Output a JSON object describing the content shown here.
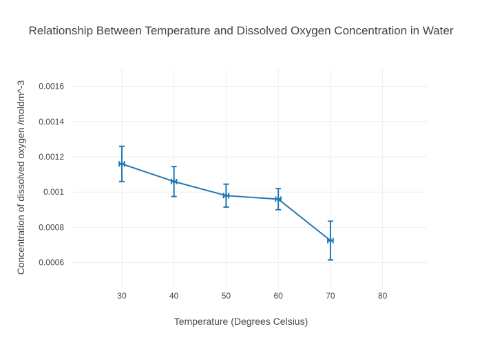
{
  "chart_data": {
    "type": "line",
    "title": "Relationship Between Temperature and Dissolved Oxygen Concentration in Water",
    "xlabel": "Temperature (Degrees Celsius)",
    "ylabel": "Concentration of dissolved oxygen /moldm^-3",
    "xlim": [
      20.5,
      88.5
    ],
    "ylim": [
      0.00045,
      0.0017
    ],
    "x_ticks": [
      30,
      40,
      50,
      60,
      70,
      80
    ],
    "x_tick_labels": [
      "30",
      "40",
      "50",
      "60",
      "70",
      "80"
    ],
    "y_ticks": [
      0.0006,
      0.0008,
      0.001,
      0.0012,
      0.0014,
      0.0016
    ],
    "y_tick_labels": [
      "0.0006",
      "0.0008",
      "0.001",
      "0.0012",
      "0.0014",
      "0.0016"
    ],
    "grid": true,
    "series": [
      {
        "color": "#1f77b4",
        "x": [
          30,
          40,
          50,
          60,
          70
        ],
        "y": [
          0.00116,
          0.00106,
          0.00098,
          0.00096,
          0.000725
        ],
        "y_error": [
          0.0001,
          8.5e-05,
          6.5e-05,
          6e-05,
          0.00011
        ],
        "x_error": [
          0.5,
          0.5,
          0.5,
          0.5,
          0.5
        ]
      }
    ]
  }
}
